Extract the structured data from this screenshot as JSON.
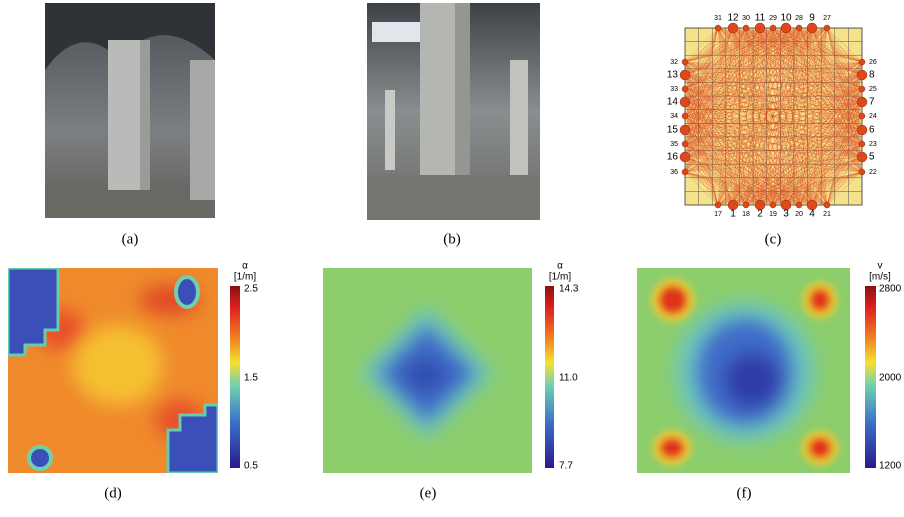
{
  "labels": [
    "(a)",
    "(b)",
    "(c)",
    "(d)",
    "(e)",
    "(f)"
  ],
  "sensor_diagram": {
    "top": [
      "31",
      "12",
      "30",
      "11",
      "29",
      "10",
      "28",
      "9",
      "27"
    ],
    "left": [
      "32",
      "13",
      "33",
      "14",
      "34",
      "15",
      "35",
      "16",
      "36"
    ],
    "right": [
      "26",
      "8",
      "25",
      "7",
      "24",
      "6",
      "23",
      "5",
      "22"
    ],
    "bottom": [
      "17",
      "1",
      "18",
      "2",
      "19",
      "3",
      "20",
      "4",
      "21"
    ]
  },
  "colorbars": [
    {
      "symbol": "α",
      "unit": "[1/m]",
      "ticks": [
        "2.5",
        "1.5",
        "0.5"
      ]
    },
    {
      "symbol": "α",
      "unit": "[1/m]",
      "ticks": [
        "14.3",
        "11.0",
        "7.7"
      ]
    },
    {
      "symbol": "v",
      "unit": "[m/s]",
      "ticks": [
        "2800",
        "2000",
        "1200"
      ]
    }
  ]
}
